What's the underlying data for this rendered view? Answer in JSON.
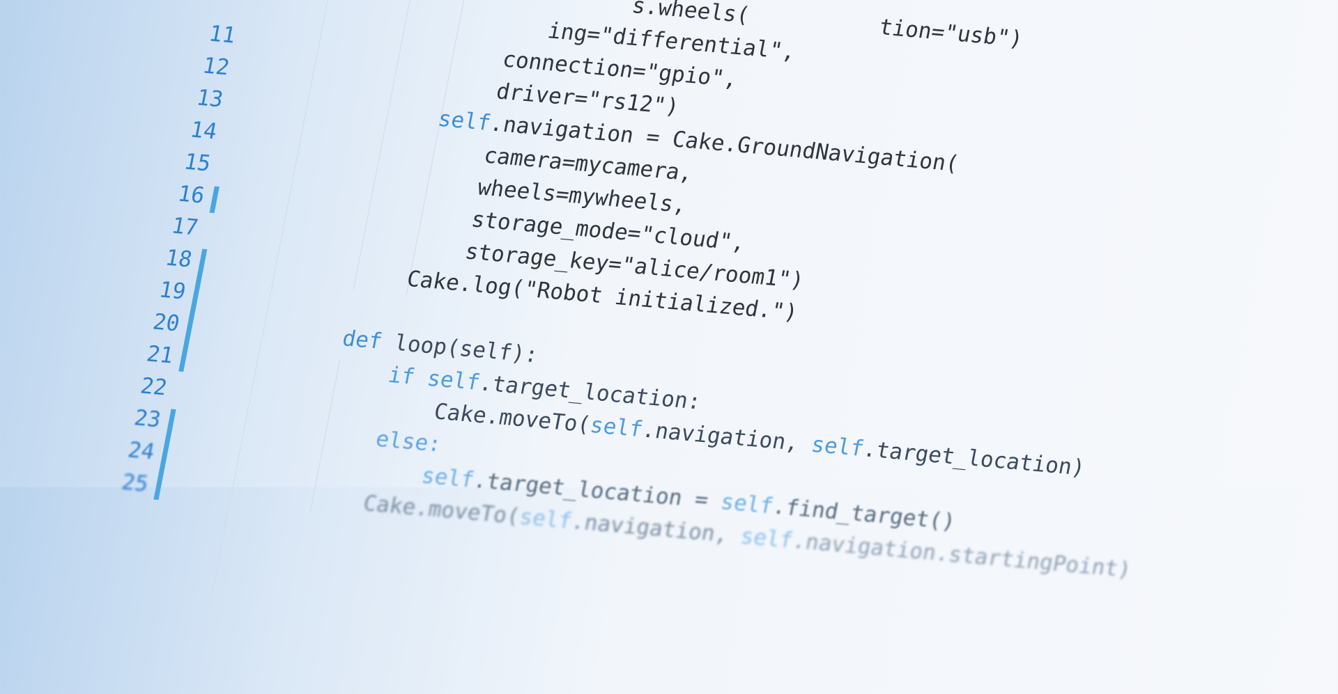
{
  "code": {
    "lines": [
      {
        "number": null,
        "tokens": [
          {
            "text": "                     s.wheels(          tion=\"usb\")",
            "color": "#2e3440"
          }
        ]
      },
      {
        "number": null,
        "tokens": [
          {
            "text": "               ing=\"differential\",",
            "color": "#2e3440"
          }
        ]
      },
      {
        "number": 11,
        "tokens": [
          {
            "text": "            connection=\"gpio\",",
            "color": "#2e3440"
          }
        ]
      },
      {
        "number": 12,
        "tokens": [
          {
            "text": "            driver=\"rs12\")",
            "color": "#2e3440"
          }
        ]
      },
      {
        "number": 13,
        "tokens": [
          {
            "text": "        self",
            "color": "#3d8fd6"
          },
          {
            "text": ".navigation = Cake.GroundNavigation(",
            "color": "#2e3440"
          }
        ]
      },
      {
        "number": 14,
        "tokens": [
          {
            "text": "            camera=mycamera,",
            "color": "#2e3440"
          }
        ]
      },
      {
        "number": 15,
        "tokens": [
          {
            "text": "            wheels=mywheels,",
            "color": "#2e3440"
          }
        ]
      },
      {
        "number": 16,
        "tokens": [
          {
            "text": "            storage_mode=\"cloud\",",
            "color": "#2e3440"
          }
        ]
      },
      {
        "number": 17,
        "tokens": [
          {
            "text": "            storage_key=\"alice/room1\")",
            "color": "#2e3440"
          }
        ]
      },
      {
        "number": 18,
        "tokens": [
          {
            "text": "        Cake.log(\"Robot initialized.\")",
            "color": "#2e3440"
          }
        ]
      },
      {
        "number": 19,
        "tokens": []
      },
      {
        "number": 20,
        "tokens": [
          {
            "text": "    def",
            "color": "#3d8fd6"
          },
          {
            "text": " loop(self):",
            "color": "#3b4a5e"
          }
        ]
      },
      {
        "number": 21,
        "tokens": [
          {
            "text": "        if self",
            "color": "#4d9be0"
          },
          {
            "text": ".target_location:",
            "color": "#3b4a5e"
          }
        ]
      },
      {
        "number": 22,
        "tokens": [
          {
            "text": "            Cake.moveTo(",
            "color": "#3b4a5e"
          },
          {
            "text": "self",
            "color": "#4d9be0"
          },
          {
            "text": ".navigation, ",
            "color": "#3b4a5e"
          },
          {
            "text": "self",
            "color": "#4d9be0"
          },
          {
            "text": ".target_location)",
            "color": "#3b4a5e"
          }
        ]
      },
      {
        "number": 23,
        "tokens": [
          {
            "text": "        else:",
            "color": "#5aa3e2"
          }
        ]
      },
      {
        "number": 24,
        "tokens": [
          {
            "text": "            self",
            "color": "#6aaee8"
          },
          {
            "text": ".target_location = ",
            "color": "#55697f"
          },
          {
            "text": "self",
            "color": "#6aaee8"
          },
          {
            "text": ".find_target()",
            "color": "#55697f"
          }
        ]
      },
      {
        "number": 25,
        "tokens": [
          {
            "text": "        Cake.moveTo(",
            "color": "#7a8ea3"
          },
          {
            "text": "self",
            "color": "#8cc0ee"
          },
          {
            "text": ".navigation, ",
            "color": "#7a8ea3"
          },
          {
            "text": "self",
            "color": "#8cc0ee"
          },
          {
            "text": ".navigation.startingPoint)",
            "color": "#8ea2b6"
          }
        ]
      }
    ]
  }
}
